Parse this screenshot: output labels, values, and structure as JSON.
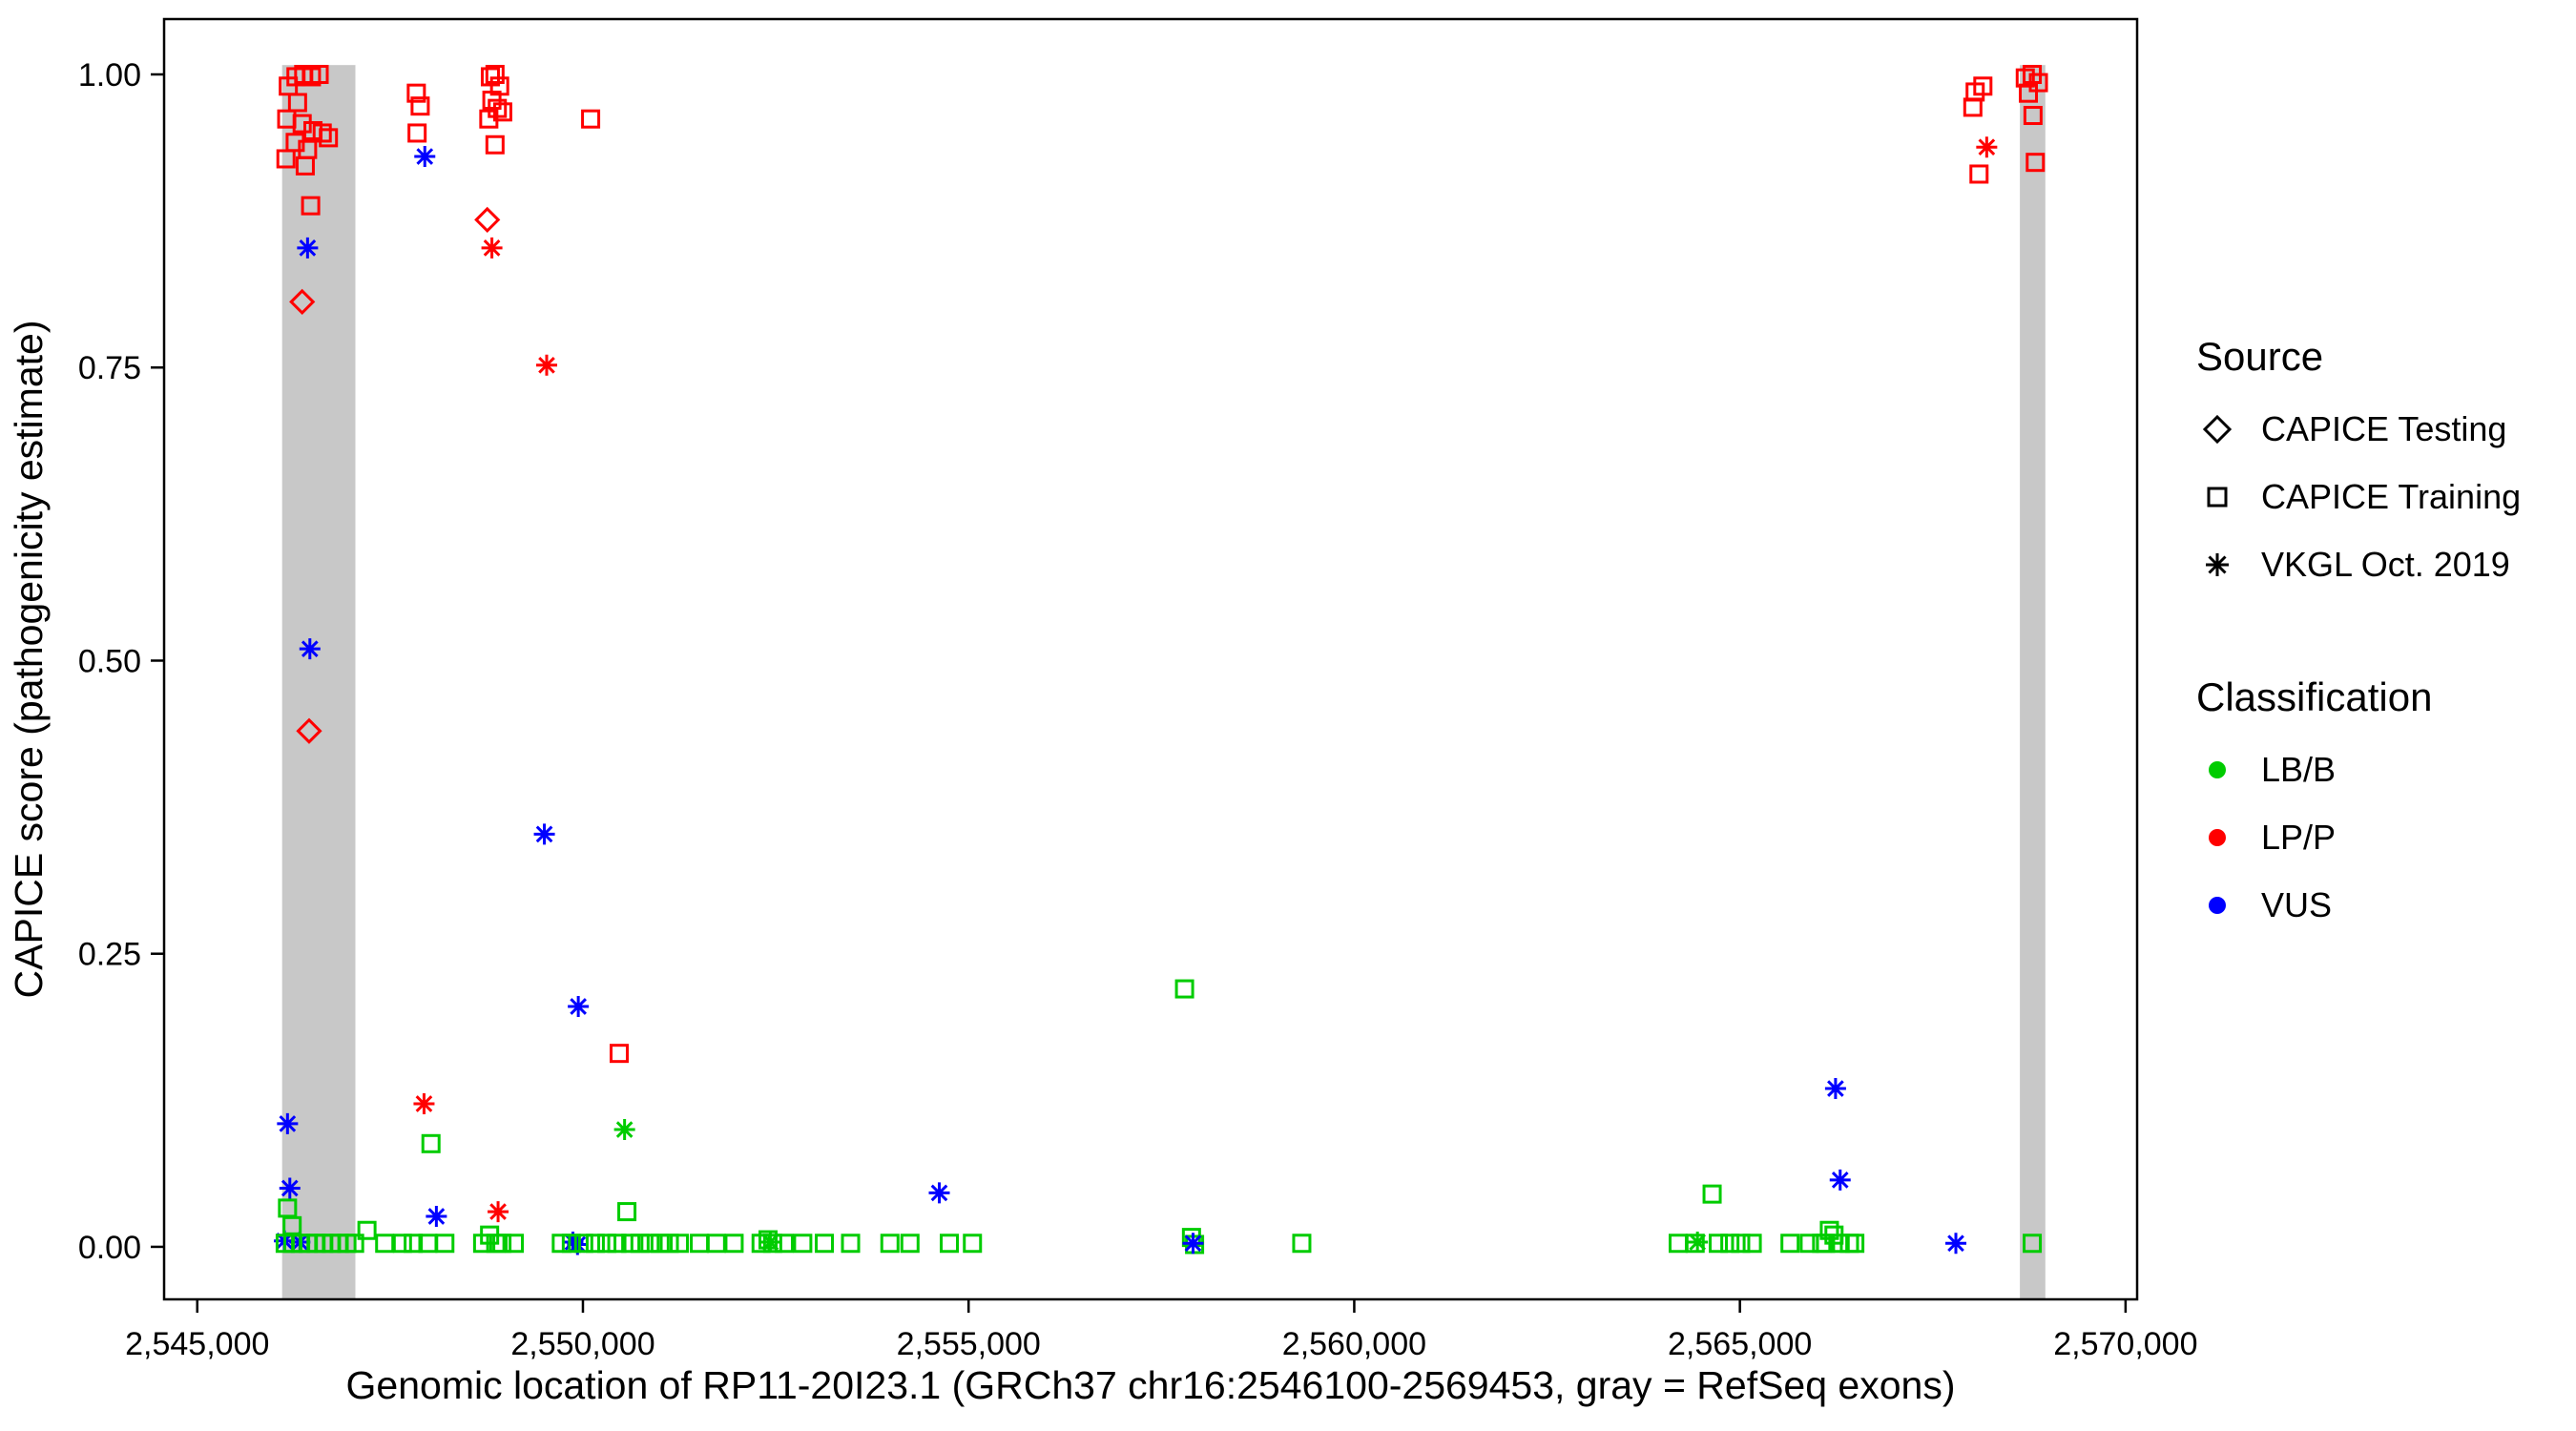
{
  "legend": {
    "source": {
      "title": "Source",
      "items": [
        {
          "label": "CAPICE Testing",
          "shape": "diamond"
        },
        {
          "label": "CAPICE Training",
          "shape": "square"
        },
        {
          "label": "VKGL Oct. 2019",
          "shape": "asterisk"
        }
      ]
    },
    "classification": {
      "title": "Classification",
      "items": [
        {
          "label": "LB/B",
          "color": "#00CC00"
        },
        {
          "label": "LP/P",
          "color": "#FF0000"
        },
        {
          "label": "VUS",
          "color": "#0000FF"
        }
      ]
    }
  },
  "chart_data": {
    "type": "scatter",
    "title": "",
    "xlabel": "Genomic location of RP11-20I23.1 (GRCh37 chr16:2546100-2569453, gray = RefSeq exons)",
    "ylabel": "CAPICE score (pathogenicity estimate)",
    "xlim": [
      2544570,
      2570150
    ],
    "ylim": [
      -0.0448,
      1.0472
    ],
    "x_ticks": [
      2545000,
      2550000,
      2555000,
      2560000,
      2565000,
      2570000
    ],
    "x_tick_labels": [
      "2,545,000",
      "2,550,000",
      "2,555,000",
      "2,560,000",
      "2,565,000",
      "2,570,000"
    ],
    "y_ticks": [
      0,
      0.25,
      0.5,
      0.75,
      1
    ],
    "y_tick_labels": [
      "0.00",
      "0.25",
      "0.50",
      "0.75",
      "1.00"
    ],
    "grid": false,
    "legend_position": "right",
    "band_color": "#C8C8C8",
    "exon_bands": [
      [
        2546100,
        2547050
      ],
      [
        2568630,
        2568960
      ]
    ],
    "shape_by_source": {
      "testing": "diamond",
      "training": "square",
      "vkgl": "asterisk"
    },
    "color_by_class": {
      "LB/B": "#00CC00",
      "LP/P": "#FF0000",
      "VUS": "#0000FF"
    },
    "points_format": [
      "x_genomic_location",
      "y_capice_score",
      "source",
      "classification"
    ],
    "points": [
      [
        2546180,
        0.99,
        "training",
        "LP/P"
      ],
      [
        2546280,
        0.998,
        "training",
        "LP/P"
      ],
      [
        2546380,
        1.0,
        "training",
        "LP/P"
      ],
      [
        2546480,
        0.998,
        "training",
        "LP/P"
      ],
      [
        2546580,
        1.0,
        "training",
        "LP/P"
      ],
      [
        2546300,
        0.976,
        "training",
        "LP/P"
      ],
      [
        2546160,
        0.962,
        "training",
        "LP/P"
      ],
      [
        2546360,
        0.958,
        "training",
        "LP/P"
      ],
      [
        2546500,
        0.952,
        "training",
        "LP/P"
      ],
      [
        2546620,
        0.95,
        "training",
        "LP/P"
      ],
      [
        2546700,
        0.946,
        "training",
        "LP/P"
      ],
      [
        2546270,
        0.942,
        "training",
        "LP/P"
      ],
      [
        2546430,
        0.936,
        "training",
        "LP/P"
      ],
      [
        2546150,
        0.928,
        "training",
        "LP/P"
      ],
      [
        2546400,
        0.922,
        "training",
        "LP/P"
      ],
      [
        2546470,
        0.888,
        "training",
        "LP/P"
      ],
      [
        2546360,
        0.806,
        "testing",
        "LP/P"
      ],
      [
        2546450,
        0.44,
        "testing",
        "LP/P"
      ],
      [
        2546430,
        0.852,
        "vkgl",
        "VUS"
      ],
      [
        2546460,
        0.51,
        "vkgl",
        "VUS"
      ],
      [
        2546170,
        0.105,
        "vkgl",
        "VUS"
      ],
      [
        2546200,
        0.05,
        "vkgl",
        "VUS"
      ],
      [
        2546130,
        0.005,
        "vkgl",
        "VUS"
      ],
      [
        2546330,
        0.004,
        "vkgl",
        "VUS"
      ],
      [
        2546170,
        0.033,
        "training",
        "LB/B"
      ],
      [
        2546230,
        0.018,
        "training",
        "LB/B"
      ],
      [
        2546140,
        0.003,
        "training",
        "LB/B"
      ],
      [
        2546240,
        0.003,
        "training",
        "LB/B"
      ],
      [
        2546340,
        0.003,
        "training",
        "LB/B"
      ],
      [
        2546440,
        0.003,
        "training",
        "LB/B"
      ],
      [
        2546540,
        0.003,
        "training",
        "LB/B"
      ],
      [
        2546640,
        0.003,
        "training",
        "LB/B"
      ],
      [
        2546740,
        0.003,
        "training",
        "LB/B"
      ],
      [
        2546840,
        0.003,
        "training",
        "LB/B"
      ],
      [
        2546940,
        0.003,
        "training",
        "LB/B"
      ],
      [
        2547040,
        0.003,
        "training",
        "LB/B"
      ],
      [
        2547200,
        0.014,
        "training",
        "LB/B"
      ],
      [
        2547430,
        0.003,
        "training",
        "LB/B"
      ],
      [
        2547660,
        0.003,
        "training",
        "LB/B"
      ],
      [
        2547840,
        0.984,
        "training",
        "LP/P"
      ],
      [
        2547890,
        0.973,
        "training",
        "LP/P"
      ],
      [
        2547850,
        0.95,
        "training",
        "LP/P"
      ],
      [
        2547950,
        0.93,
        "vkgl",
        "VUS"
      ],
      [
        2547940,
        0.122,
        "vkgl",
        "LP/P"
      ],
      [
        2548030,
        0.088,
        "training",
        "LB/B"
      ],
      [
        2548100,
        0.026,
        "vkgl",
        "VUS"
      ],
      [
        2547800,
        0.003,
        "training",
        "LB/B"
      ],
      [
        2547990,
        0.003,
        "training",
        "LB/B"
      ],
      [
        2548210,
        0.003,
        "training",
        "LB/B"
      ],
      [
        2548800,
        0.998,
        "training",
        "LP/P"
      ],
      [
        2548860,
        1.0,
        "training",
        "LP/P"
      ],
      [
        2548920,
        0.99,
        "training",
        "LP/P"
      ],
      [
        2548820,
        0.978,
        "training",
        "LP/P"
      ],
      [
        2548890,
        0.971,
        "training",
        "LP/P"
      ],
      [
        2548960,
        0.968,
        "training",
        "LP/P"
      ],
      [
        2548780,
        0.962,
        "training",
        "LP/P"
      ],
      [
        2548860,
        0.94,
        "training",
        "LP/P"
      ],
      [
        2548760,
        0.876,
        "testing",
        "LP/P"
      ],
      [
        2548820,
        0.852,
        "vkgl",
        "LP/P"
      ],
      [
        2548900,
        0.03,
        "vkgl",
        "LP/P"
      ],
      [
        2548700,
        0.003,
        "training",
        "LB/B"
      ],
      [
        2548790,
        0.01,
        "training",
        "LB/B"
      ],
      [
        2548870,
        0.003,
        "training",
        "LB/B"
      ],
      [
        2548950,
        0.003,
        "training",
        "LB/B"
      ],
      [
        2549110,
        0.003,
        "training",
        "LB/B"
      ],
      [
        2549530,
        0.752,
        "vkgl",
        "LP/P"
      ],
      [
        2549500,
        0.352,
        "vkgl",
        "VUS"
      ],
      [
        2549940,
        0.205,
        "vkgl",
        "VUS"
      ],
      [
        2549870,
        0.004,
        "vkgl",
        "VUS"
      ],
      [
        2549930,
        0.002,
        "vkgl",
        "VUS"
      ],
      [
        2550100,
        0.962,
        "training",
        "LP/P"
      ],
      [
        2550470,
        0.165,
        "training",
        "LP/P"
      ],
      [
        2550540,
        0.1,
        "vkgl",
        "LB/B"
      ],
      [
        2550570,
        0.03,
        "training",
        "LB/B"
      ],
      [
        2549720,
        0.003,
        "training",
        "LB/B"
      ],
      [
        2549850,
        0.003,
        "training",
        "LB/B"
      ],
      [
        2550010,
        0.003,
        "training",
        "LB/B"
      ],
      [
        2550160,
        0.003,
        "training",
        "LB/B"
      ],
      [
        2550310,
        0.003,
        "training",
        "LB/B"
      ],
      [
        2550440,
        0.003,
        "training",
        "LB/B"
      ],
      [
        2550620,
        0.003,
        "training",
        "LB/B"
      ],
      [
        2550740,
        0.003,
        "training",
        "LB/B"
      ],
      [
        2550870,
        0.003,
        "training",
        "LB/B"
      ],
      [
        2551000,
        0.003,
        "training",
        "LB/B"
      ],
      [
        2551120,
        0.003,
        "training",
        "LB/B"
      ],
      [
        2551250,
        0.003,
        "training",
        "LB/B"
      ],
      [
        2551510,
        0.003,
        "training",
        "LB/B"
      ],
      [
        2551730,
        0.003,
        "training",
        "LB/B"
      ],
      [
        2551960,
        0.003,
        "training",
        "LB/B"
      ],
      [
        2552310,
        0.003,
        "training",
        "LB/B"
      ],
      [
        2552400,
        0.006,
        "training",
        "LB/B"
      ],
      [
        2552460,
        0.003,
        "training",
        "LB/B"
      ],
      [
        2552430,
        0.004,
        "vkgl",
        "LB/B"
      ],
      [
        2552610,
        0.003,
        "training",
        "LB/B"
      ],
      [
        2552850,
        0.003,
        "training",
        "LB/B"
      ],
      [
        2553130,
        0.003,
        "training",
        "LB/B"
      ],
      [
        2553470,
        0.003,
        "training",
        "LB/B"
      ],
      [
        2553980,
        0.003,
        "training",
        "LB/B"
      ],
      [
        2554240,
        0.003,
        "training",
        "LB/B"
      ],
      [
        2554620,
        0.046,
        "vkgl",
        "VUS"
      ],
      [
        2554750,
        0.003,
        "training",
        "LB/B"
      ],
      [
        2555050,
        0.003,
        "training",
        "LB/B"
      ],
      [
        2557800,
        0.22,
        "training",
        "LB/B"
      ],
      [
        2557890,
        0.008,
        "training",
        "LB/B"
      ],
      [
        2557930,
        0.002,
        "training",
        "LB/B"
      ],
      [
        2557910,
        0.003,
        "vkgl",
        "VUS"
      ],
      [
        2559320,
        0.003,
        "training",
        "LB/B"
      ],
      [
        2564200,
        0.003,
        "training",
        "LB/B"
      ],
      [
        2564420,
        0.003,
        "training",
        "LB/B"
      ],
      [
        2564450,
        0.004,
        "vkgl",
        "LB/B"
      ],
      [
        2564640,
        0.045,
        "training",
        "LB/B"
      ],
      [
        2564720,
        0.003,
        "training",
        "LB/B"
      ],
      [
        2564870,
        0.003,
        "training",
        "LB/B"
      ],
      [
        2565010,
        0.003,
        "training",
        "LB/B"
      ],
      [
        2565160,
        0.003,
        "training",
        "LB/B"
      ],
      [
        2565650,
        0.003,
        "training",
        "LB/B"
      ],
      [
        2565900,
        0.003,
        "training",
        "LB/B"
      ],
      [
        2566060,
        0.003,
        "training",
        "LB/B"
      ],
      [
        2566160,
        0.014,
        "training",
        "LB/B"
      ],
      [
        2566220,
        0.01,
        "training",
        "LB/B"
      ],
      [
        2566110,
        0.003,
        "training",
        "LB/B"
      ],
      [
        2566240,
        0.135,
        "vkgl",
        "VUS"
      ],
      [
        2566300,
        0.057,
        "vkgl",
        "VUS"
      ],
      [
        2566300,
        0.003,
        "training",
        "LB/B"
      ],
      [
        2566420,
        0.003,
        "training",
        "LB/B"
      ],
      [
        2566490,
        0.003,
        "training",
        "LB/B"
      ],
      [
        2567800,
        0.003,
        "vkgl",
        "VUS"
      ],
      [
        2568050,
        0.985,
        "training",
        "LP/P"
      ],
      [
        2568150,
        0.99,
        "training",
        "LP/P"
      ],
      [
        2568020,
        0.972,
        "training",
        "LP/P"
      ],
      [
        2568100,
        0.915,
        "training",
        "LP/P"
      ],
      [
        2568200,
        0.938,
        "vkgl",
        "LP/P"
      ],
      [
        2568700,
        0.997,
        "training",
        "LP/P"
      ],
      [
        2568790,
        1.0,
        "training",
        "LP/P"
      ],
      [
        2568870,
        0.993,
        "training",
        "LP/P"
      ],
      [
        2568740,
        0.984,
        "training",
        "LP/P"
      ],
      [
        2568800,
        0.965,
        "training",
        "LP/P"
      ],
      [
        2568830,
        0.925,
        "training",
        "LP/P"
      ],
      [
        2568790,
        0.003,
        "training",
        "LB/B"
      ]
    ]
  }
}
